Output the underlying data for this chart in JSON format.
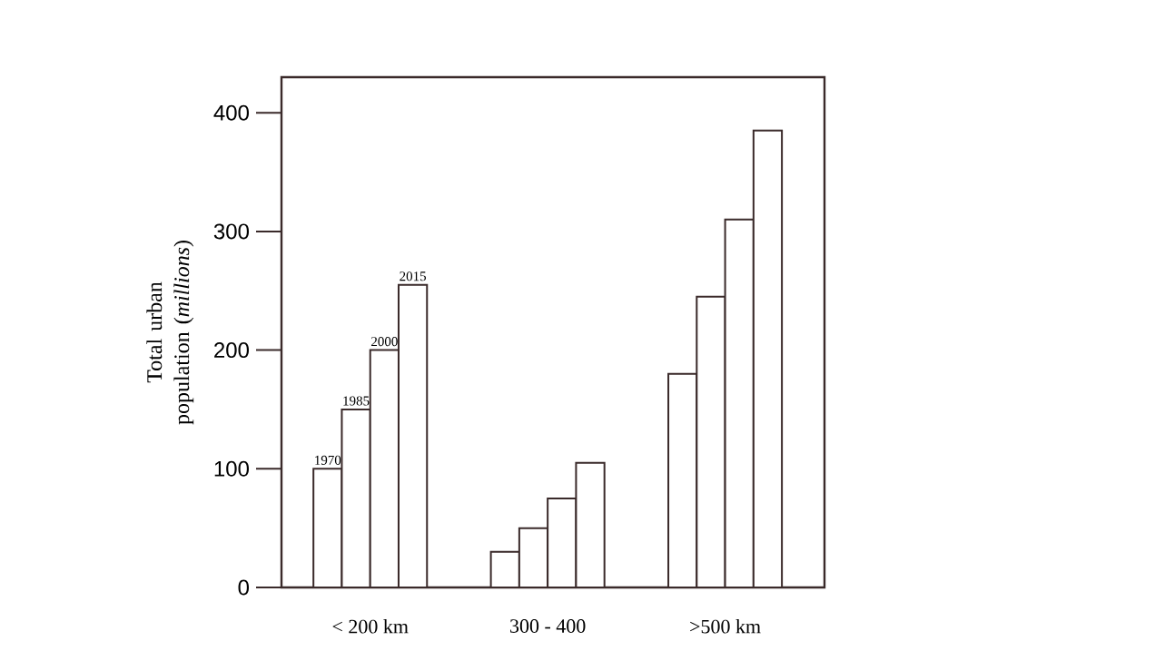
{
  "chart_data": {
    "type": "bar",
    "ylabel": "Total urban population (*millions*)",
    "categories": [
      "< 200 km",
      "300 - 400",
      ">500 km"
    ],
    "series": [
      {
        "name": "1970",
        "color": "#ffffff",
        "values": [
          100,
          30,
          180
        ]
      },
      {
        "name": "1985",
        "color": "#ffffff",
        "values": [
          150,
          50,
          245
        ]
      },
      {
        "name": "2000",
        "color": "#ffffff",
        "values": [
          200,
          75,
          310
        ]
      },
      {
        "name": "2015",
        "color": "#ffffff",
        "values": [
          255,
          105,
          385
        ]
      }
    ],
    "ylim": [
      0,
      430
    ],
    "yticks": [
      0,
      100,
      200,
      300,
      400
    ]
  }
}
